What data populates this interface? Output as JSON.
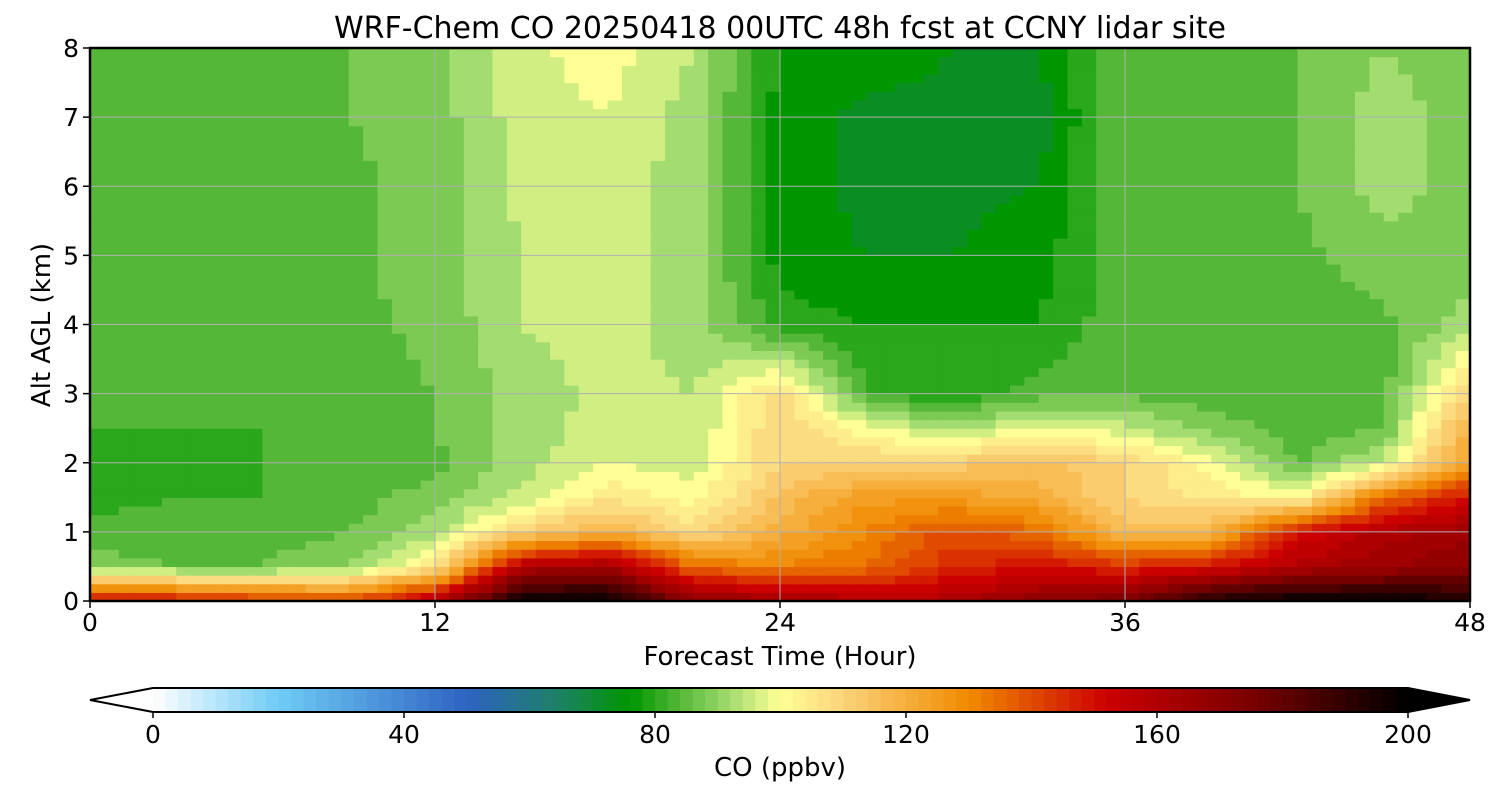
{
  "chart_data": {
    "type": "heatmap",
    "title": "WRF-Chem CO  20250418 00UTC 48h fcst at CCNY lidar site",
    "xlabel": "Forecast Time (Hour)",
    "ylabel": "Alt AGL (km)",
    "xlim": [
      0,
      48
    ],
    "ylim": [
      0,
      8
    ],
    "x_ticks": [
      "0",
      "12",
      "24",
      "36",
      "48"
    ],
    "y_ticks": [
      "0",
      "1",
      "2",
      "3",
      "4",
      "5",
      "6",
      "7",
      "8"
    ],
    "grid": true,
    "x": [
      0,
      3,
      6,
      9,
      12,
      15,
      18,
      21,
      24,
      27,
      30,
      33,
      36,
      39,
      42,
      45,
      48
    ],
    "y": [
      0,
      0.5,
      1,
      1.5,
      2,
      2.5,
      3,
      4,
      5,
      6,
      7,
      8
    ],
    "z": [
      [
        150,
        150,
        145,
        140,
        160,
        200,
        200,
        170,
        165,
        160,
        160,
        170,
        175,
        195,
        200,
        200,
        195
      ],
      [
        88,
        86,
        86,
        90,
        105,
        160,
        165,
        135,
        130,
        135,
        145,
        150,
        145,
        150,
        160,
        165,
        170
      ],
      [
        84,
        84,
        84,
        86,
        92,
        110,
        120,
        108,
        120,
        130,
        140,
        135,
        115,
        118,
        150,
        160,
        165
      ],
      [
        80,
        82,
        82,
        84,
        88,
        95,
        105,
        100,
        115,
        125,
        125,
        120,
        110,
        105,
        100,
        135,
        150
      ],
      [
        78,
        80,
        82,
        82,
        85,
        92,
        98,
        96,
        110,
        110,
        112,
        115,
        110,
        100,
        85,
        95,
        125
      ],
      [
        82,
        82,
        82,
        83,
        86,
        92,
        96,
        94,
        110,
        100,
        92,
        100,
        95,
        88,
        84,
        86,
        120
      ],
      [
        82,
        83,
        83,
        84,
        86,
        92,
        95,
        94,
        108,
        82,
        78,
        84,
        85,
        84,
        84,
        84,
        110
      ],
      [
        84,
        84,
        84,
        85,
        87,
        94,
        96,
        92,
        80,
        78,
        78,
        78,
        85,
        84,
        84,
        85,
        92
      ],
      [
        84,
        85,
        85,
        85,
        88,
        94,
        96,
        92,
        76,
        74,
        74,
        76,
        85,
        84,
        85,
        88,
        88
      ],
      [
        84,
        85,
        84,
        85,
        88,
        95,
        96,
        92,
        76,
        73,
        73,
        74,
        86,
        85,
        86,
        92,
        88
      ],
      [
        84,
        85,
        84,
        86,
        88,
        96,
        98,
        92,
        76,
        73,
        73,
        72,
        86,
        85,
        86,
        92,
        88
      ],
      [
        84,
        84,
        84,
        86,
        88,
        97,
        100,
        94,
        78,
        76,
        74,
        74,
        86,
        85,
        86,
        90,
        88
      ]
    ],
    "colorbar": {
      "label": "CO  (ppbv)",
      "min": 0,
      "max": 200,
      "ticks": [
        "0",
        "40",
        "80",
        "120",
        "160",
        "200"
      ],
      "extend": "both",
      "orientation": "horizontal"
    },
    "colormap": [
      {
        "v": 0,
        "c": "#ffffff"
      },
      {
        "v": 20,
        "c": "#6fcbf5"
      },
      {
        "v": 50,
        "c": "#2e62c2"
      },
      {
        "v": 64,
        "c": "#1f7f6a"
      },
      {
        "v": 76,
        "c": "#009600"
      },
      {
        "v": 84,
        "c": "#55b738"
      },
      {
        "v": 92,
        "c": "#a3dc70"
      },
      {
        "v": 100,
        "c": "#ffff96"
      },
      {
        "v": 110,
        "c": "#fbd37a"
      },
      {
        "v": 130,
        "c": "#f08a00"
      },
      {
        "v": 152,
        "c": "#cc0000"
      },
      {
        "v": 175,
        "c": "#7a0000"
      },
      {
        "v": 200,
        "c": "#000000"
      }
    ]
  }
}
